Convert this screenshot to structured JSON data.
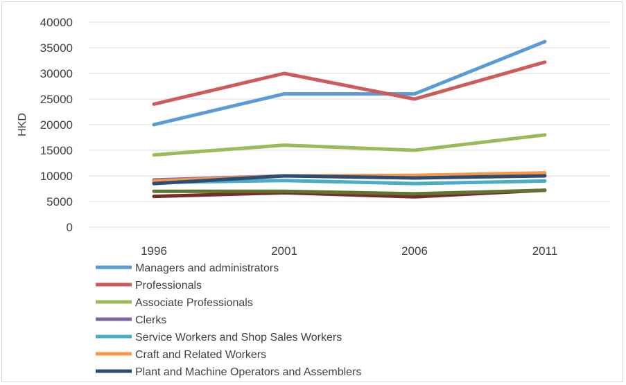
{
  "chart_data": {
    "type": "line",
    "title": "",
    "xlabel": "",
    "ylabel": "HKD",
    "categories": [
      "1996",
      "2001",
      "2006",
      "2011"
    ],
    "ylim": [
      0,
      40000
    ],
    "yticks": [
      0,
      5000,
      10000,
      15000,
      20000,
      25000,
      30000,
      35000,
      40000
    ],
    "grid": true,
    "legend_position": "bottom",
    "series": [
      {
        "name": "Managers and administrators",
        "color": "#5b9bd5",
        "values": [
          20000,
          26000,
          26000,
          36200
        ]
      },
      {
        "name": "Professionals",
        "color": "#cc5c5a",
        "values": [
          24000,
          30000,
          25000,
          32200
        ]
      },
      {
        "name": "Associate Professionals",
        "color": "#9bbb59",
        "values": [
          14100,
          16000,
          15000,
          18000
        ]
      },
      {
        "name": "Clerks",
        "color": "#8064a2",
        "values": [
          9200,
          10000,
          10000,
          10500
        ]
      },
      {
        "name": "Service Workers and Shop Sales Workers",
        "color": "#4bacc6",
        "values": [
          8700,
          9100,
          8500,
          9000
        ]
      },
      {
        "name": "Craft and Related Workers",
        "color": "#f79646",
        "values": [
          9000,
          10000,
          10100,
          10600
        ]
      },
      {
        "name": "Plant and Machine Operators and Assemblers",
        "color": "#2c4d75",
        "values": [
          8500,
          10000,
          9600,
          10000
        ]
      },
      {
        "name": "",
        "color": "#772c2a",
        "values": [
          6000,
          6700,
          5900,
          7200
        ]
      },
      {
        "name": "",
        "color": "#5f7530",
        "values": [
          7000,
          7000,
          6500,
          7200
        ]
      }
    ]
  }
}
